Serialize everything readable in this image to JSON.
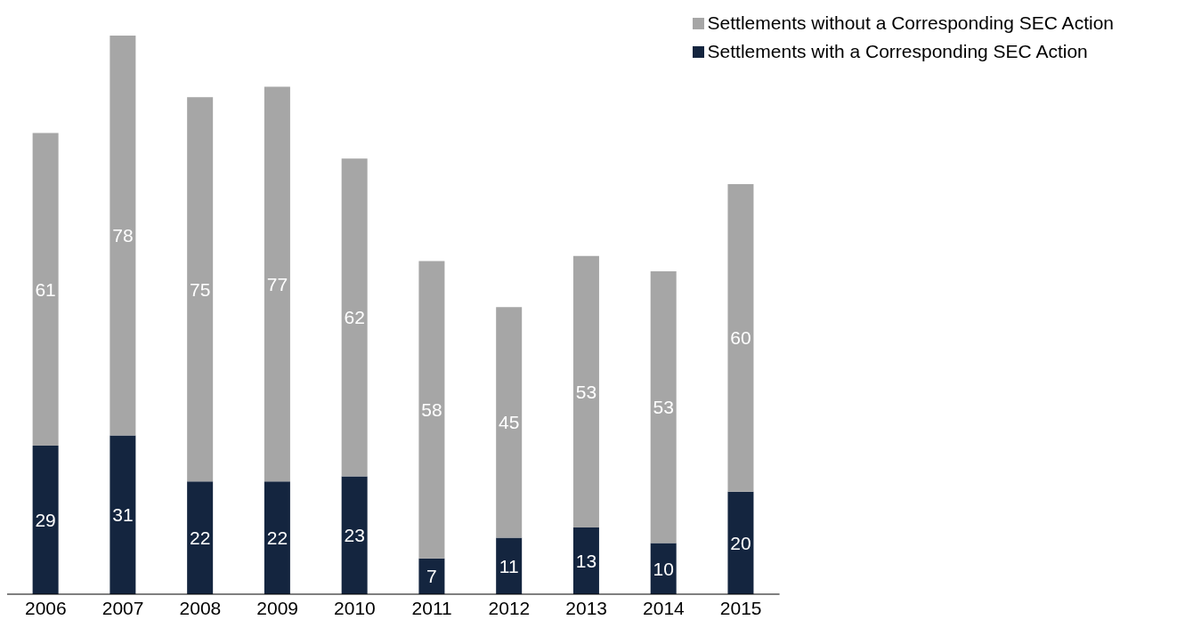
{
  "chart_data": {
    "type": "bar",
    "stacked": true,
    "data_labels": true,
    "legend": "top right",
    "grid": false,
    "categories": [
      "2006",
      "2007",
      "2008",
      "2009",
      "2010",
      "2011",
      "2012",
      "2013",
      "2014",
      "2015"
    ],
    "series": [
      {
        "name": "Settlements with a Corresponding SEC Action",
        "color": "#14253f",
        "values": [
          29,
          31,
          22,
          22,
          23,
          7,
          11,
          13,
          10,
          20
        ]
      },
      {
        "name": "Settlements without a Corresponding SEC Action",
        "color": "#a6a6a6",
        "values": [
          61,
          78,
          75,
          77,
          62,
          58,
          45,
          53,
          53,
          60
        ]
      }
    ]
  }
}
